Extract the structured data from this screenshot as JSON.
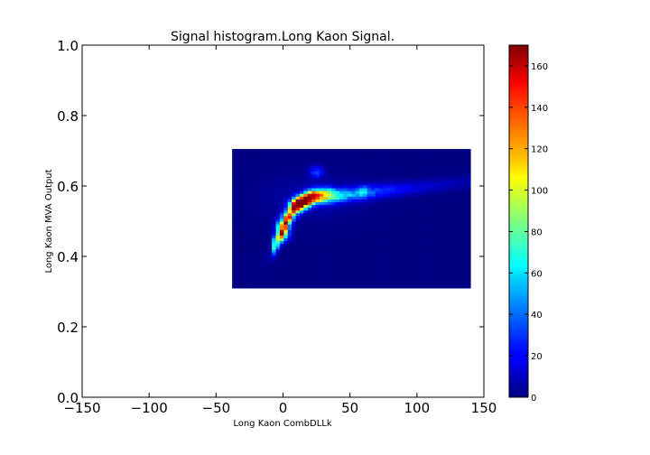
{
  "chart_data": {
    "type": "heatmap",
    "title": "Signal histogram.Long Kaon Signal.",
    "xlabel": "Long Kaon CombDLLk",
    "ylabel": "Long Kaon MVA Output",
    "xlim": [
      -150,
      150
    ],
    "ylim": [
      0.0,
      1.0
    ],
    "x_ticks": [
      "−150",
      "−100",
      "−50",
      "0",
      "50",
      "100",
      "150"
    ],
    "x_tick_values": [
      -150,
      -100,
      -50,
      0,
      50,
      100,
      150
    ],
    "y_ticks": [
      "0.0",
      "0.2",
      "0.4",
      "0.6",
      "0.8",
      "1.0"
    ],
    "y_tick_values": [
      0.0,
      0.2,
      0.4,
      0.6,
      0.8,
      1.0
    ],
    "histogram_range": {
      "x": [
        -38,
        140
      ],
      "y": [
        0.31,
        0.705
      ]
    },
    "colormap": "jet",
    "colorbar": {
      "min": 0,
      "max": 170,
      "ticks": [
        "0",
        "20",
        "40",
        "60",
        "80",
        "100",
        "120",
        "140",
        "160"
      ],
      "tick_values": [
        0,
        20,
        40,
        60,
        80,
        100,
        120,
        140,
        160
      ]
    },
    "hotspots": [
      {
        "x": 0,
        "y": 0.46,
        "count": 110
      },
      {
        "x": 0,
        "y": 0.485,
        "count": 160
      },
      {
        "x": 3,
        "y": 0.51,
        "count": 120
      },
      {
        "x": 8,
        "y": 0.535,
        "count": 100
      },
      {
        "x": 10,
        "y": 0.55,
        "count": 165
      },
      {
        "x": 14,
        "y": 0.555,
        "count": 150
      },
      {
        "x": 18,
        "y": 0.565,
        "count": 130
      },
      {
        "x": 22,
        "y": 0.575,
        "count": 110
      },
      {
        "x": 28,
        "y": 0.578,
        "count": 90
      },
      {
        "x": 35,
        "y": 0.58,
        "count": 50
      },
      {
        "x": 25,
        "y": 0.64,
        "count": 55
      },
      {
        "x": 60,
        "y": 0.585,
        "count": 35
      }
    ]
  }
}
